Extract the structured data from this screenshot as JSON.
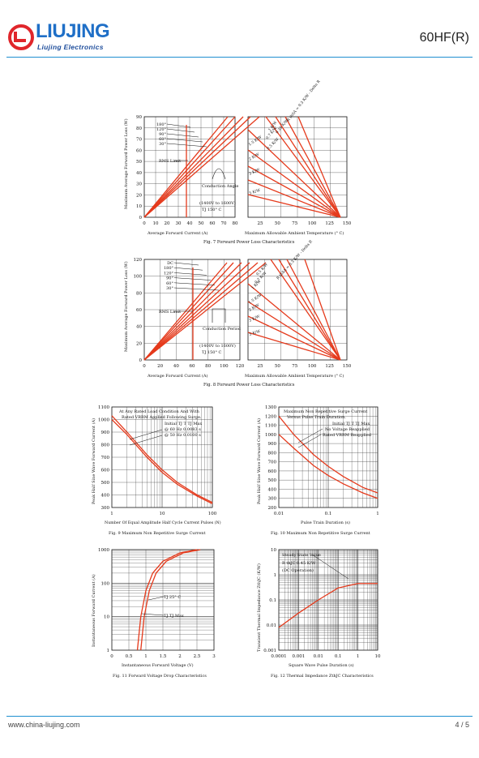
{
  "header": {
    "brand_main": "LIUJING",
    "brand_sub": "Liujing Electronics",
    "part_number": "60HF(R)"
  },
  "footer": {
    "website": "www.china-liujing.com",
    "page": "4 / 5"
  },
  "colors": {
    "accent": "#1f8fd0",
    "logo_red": "#e0262b",
    "curve": "#e53a1c"
  },
  "chart_data": [
    {
      "type": "line",
      "title": "Fig. 7   Forward Power Loss Characteristics",
      "xlabel": "Average Forward Current (A)",
      "xlabel2": "Maximum Allowable Ambient Temperature (° C)",
      "ylabel": "Maximum Average Forward Power Loss (W)",
      "xticks": [
        "0",
        "10",
        "20",
        "30",
        "40",
        "50",
        "60",
        "70",
        "80"
      ],
      "xticks2": [
        "25",
        "50",
        "75",
        "100",
        "125",
        "150"
      ],
      "yticks": [
        "0",
        "10",
        "20",
        "30",
        "40",
        "50",
        "60",
        "70",
        "80",
        "90"
      ],
      "ylim": [
        0,
        90
      ],
      "conduction": [
        "180°",
        "120°",
        "90°",
        "60°",
        "30°"
      ],
      "rthsa": [
        "1 K/W",
        "0.7 K/W",
        "0.5 K/W",
        "0.35 K/W",
        "R thSA = 0.3 K/W - Delta R",
        "1.5 K/W",
        "2 K/W",
        "3 K/W",
        "5 K/W"
      ],
      "annotations": [
        "RMS Limit",
        "Conduction Angle",
        "(1400V to 1600V)",
        "TJ  150° C"
      ]
    },
    {
      "type": "line",
      "title": "Fig. 8   Forward Power Loss Characteristics",
      "xlabel": "Average Forward Current (A)",
      "xlabel2": "Maximum Allowable Ambient Temperature (° C)",
      "ylabel": "Maximum Average Forward Power Loss (W)",
      "xticks": [
        "0",
        "20",
        "40",
        "60",
        "80",
        "100",
        "120"
      ],
      "xticks2": [
        "25",
        "50",
        "75",
        "100",
        "125",
        "150"
      ],
      "yticks": [
        "0",
        "20",
        "40",
        "60",
        "80",
        "100",
        "120"
      ],
      "ylim": [
        0,
        120
      ],
      "conduction": [
        "DC",
        "180°",
        "120°",
        "90°",
        "60°",
        "30°"
      ],
      "rthsa": [
        "0.5 K/W",
        "0.7 K/W",
        "1 K/W",
        "R thSA = 0.3 K/W - Delta R",
        "1.5 K/W",
        "2 K/W",
        "3 K/W",
        "5 K/W"
      ],
      "annotations": [
        "RMS Limit",
        "Conduction Period",
        "(1400V to 1600V)",
        "TJ  150° C"
      ]
    },
    {
      "type": "line",
      "title": "Fig. 9  Maximum Non Repetitive Surge Current",
      "xlabel": "Number Of Equal Amplitude Half Cycle Current Pulses (N)",
      "ylabel": "Peak Half Sine Wave Forward Current (A)",
      "xticks": [
        "1",
        "10",
        "100"
      ],
      "yticks": [
        "300",
        "400",
        "500",
        "600",
        "700",
        "800",
        "900",
        "1000",
        "1100"
      ],
      "ylim": [
        300,
        1100
      ],
      "annotations": [
        "At Any Rated Load Condition And With",
        "Rated VRRM Applied Following Surge.",
        "Initial TJ T TJ Max",
        "@ 60 Hz 0.0083 s",
        "@ 50 Hz 0.0100 s"
      ],
      "series": [
        {
          "x": [
            1,
            2,
            5,
            10,
            20,
            50,
            100
          ],
          "values": [
            1030,
            900,
            720,
            600,
            500,
            400,
            340
          ]
        },
        {
          "x": [
            1,
            2,
            5,
            10,
            20,
            50,
            100
          ],
          "values": [
            1000,
            880,
            700,
            580,
            485,
            390,
            330
          ]
        }
      ]
    },
    {
      "type": "line",
      "title": "Fig. 10  Maximum Non Repetitive Surge Current",
      "xlabel": "Pulse Train Duration (s)",
      "ylabel": "Peak Half Sine Wave Forward Current (A)",
      "xticks": [
        "0.01",
        "0.1",
        "1"
      ],
      "yticks": [
        "200",
        "300",
        "400",
        "500",
        "600",
        "700",
        "800",
        "900",
        "1000",
        "1100",
        "1200",
        "1300"
      ],
      "ylim": [
        200,
        1300
      ],
      "annotations": [
        "Maximum Non Repetitive Surge Current",
        "Versus Pulse Train Duration.",
        "Initial TJ T TJ Max",
        "No Voltage Reapplied",
        "Rated VRRM Reapplied"
      ],
      "series": [
        {
          "x": [
            0.01,
            0.02,
            0.05,
            0.1,
            0.2,
            0.5,
            1
          ],
          "values": [
            1200,
            1000,
            780,
            650,
            540,
            420,
            360
          ]
        },
        {
          "x": [
            0.01,
            0.02,
            0.05,
            0.1,
            0.2,
            0.5,
            1
          ],
          "values": [
            1000,
            850,
            660,
            550,
            460,
            360,
            300
          ]
        }
      ]
    },
    {
      "type": "line",
      "title": "Fig. 11   Forward Voltage Drop Characteristics",
      "xlabel": "Instantaneous Forward Voltage (V)",
      "ylabel": "Instantaneous Forward Current (A)",
      "xticks": [
        "0",
        "0.5",
        "1",
        "1.5",
        "2",
        "2.5",
        "3"
      ],
      "yticks": [
        "1",
        "10",
        "100",
        "1000"
      ],
      "ylim": [
        1,
        1000
      ],
      "annotations": [
        "TJ  25° C",
        "TJ  TJ Max"
      ],
      "series": [
        {
          "x": [
            0.75,
            0.85,
            1.0,
            1.2,
            1.5,
            2.0,
            2.5
          ],
          "values": [
            1,
            10,
            60,
            200,
            450,
            800,
            1000
          ]
        },
        {
          "x": [
            0.85,
            0.95,
            1.1,
            1.3,
            1.6,
            2.1,
            2.6
          ],
          "values": [
            1,
            10,
            60,
            200,
            450,
            800,
            1000
          ]
        }
      ]
    },
    {
      "type": "line",
      "title": "Fig. 12   Thermal Impedance ZthJC Characteristics",
      "xlabel": "Square Wave Pulse Duration (s)",
      "ylabel": "Transient Thermal Impedance ZthJC (K/W)",
      "xticks": [
        "0.0001",
        "0.001",
        "0.01",
        "0.1",
        "1",
        "10"
      ],
      "yticks": [
        "0.001",
        "0.01",
        "0.1",
        "1",
        "10"
      ],
      "ylim": [
        0.001,
        10
      ],
      "annotations": [
        "Steady State Value",
        "R thJC   0.45 K/W",
        "(DC Operation)"
      ],
      "series": [
        {
          "x": [
            0.0001,
            0.001,
            0.01,
            0.1,
            1,
            10
          ],
          "values": [
            0.008,
            0.03,
            0.1,
            0.3,
            0.45,
            0.45
          ]
        }
      ]
    }
  ]
}
